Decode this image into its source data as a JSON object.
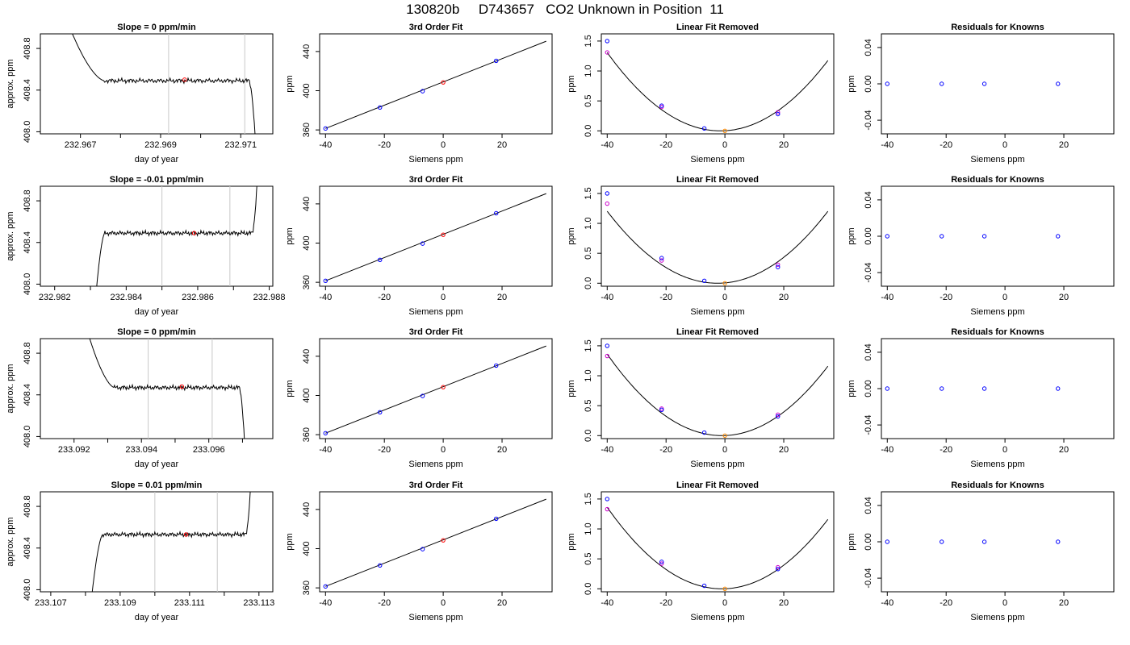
{
  "main_title": "130820b     D743657   CO2 Unknown in Position  11",
  "colors": {
    "axis": "#000000",
    "line": "#000000",
    "guide": "#c8c8c8",
    "known": "#0000ff",
    "unknown": "#ff0000",
    "alt_known": "#cc00cc",
    "fitted_unknown": "#ff8c00"
  },
  "common": {
    "fit_title": "3rd Order Fit",
    "removed_title": "Linear Fit Removed",
    "resid_title": "Residuals for Knowns",
    "x_label_siemens": "Siemens ppm",
    "y_label_ppm": "ppm",
    "x_label_day": "day of year",
    "y_label_approx": "approx. ppm"
  },
  "chart_data": [
    {
      "row": 1,
      "timeseries": {
        "type": "line",
        "title": "Slope =  0  ppm/min",
        "xlabel": "day of year",
        "ylabel": "approx. ppm",
        "xlim": [
          232.966,
          232.9718
        ],
        "ylim": [
          407.98,
          408.94
        ],
        "xticks": [
          232.967,
          232.969,
          232.971
        ],
        "xtick_labels": [
          "232.967",
          "232.969",
          "232.971"
        ],
        "xminor": [
          232.968,
          232.97
        ],
        "yticks": [
          408.0,
          408.4,
          408.8
        ],
        "ytick_labels": [
          "408.0",
          "408.4",
          "408.8"
        ],
        "vlines": [
          232.9692,
          232.9711
        ],
        "trace": {
          "start": 232.9665,
          "end": 232.9714,
          "settle": 232.9676,
          "level": 408.49,
          "enter": "high",
          "exit": "low"
        },
        "marker": {
          "x": 232.9696,
          "y": 408.5
        }
      },
      "fit": {
        "type": "line",
        "xlim": [
          -42,
          37
        ],
        "ylim": [
          356,
          458
        ],
        "xticks": [
          -40,
          -20,
          0,
          20
        ],
        "yticks": [
          360,
          400,
          440
        ],
        "knowns": [
          [
            -40,
            361.5
          ],
          [
            -21.5,
            382.9
          ],
          [
            -7,
            399.5
          ],
          [
            18,
            430.5
          ]
        ],
        "unknown": [
          0,
          408.5
        ],
        "line": [
          [
            -40,
            361.5
          ],
          [
            35,
            450.5
          ]
        ]
      },
      "removed": {
        "type": "scatter",
        "xlim": [
          -42,
          37
        ],
        "ylim": [
          -0.05,
          1.62
        ],
        "xticks": [
          -40,
          -20,
          0,
          20
        ],
        "yticks": [
          0,
          0.5,
          1,
          1.5
        ],
        "ytick_labels": [
          "0.0",
          "0.5",
          "1.0",
          "1.5"
        ],
        "knowns": [
          [
            -40,
            1.5
          ],
          [
            -21.5,
            0.42
          ],
          [
            -7,
            0.04
          ],
          [
            18,
            0.28
          ]
        ],
        "alt": [
          [
            -40,
            1.31
          ],
          [
            -21.5,
            0.4
          ],
          [
            18,
            0.31
          ]
        ],
        "unknown": [
          0,
          0
        ],
        "curve": {
          "vertex_x": -1.5,
          "a": 0.000882
        }
      },
      "resid": {
        "type": "scatter",
        "xlim": [
          -42,
          37
        ],
        "ylim": [
          -0.055,
          0.055
        ],
        "xticks": [
          -40,
          -20,
          0,
          20
        ],
        "yticks": [
          -0.04,
          0,
          0.04
        ],
        "ytick_labels": [
          "-0.04",
          "0.00",
          "0.04"
        ],
        "knowns": [
          [
            -40,
            0
          ],
          [
            -21.5,
            0
          ],
          [
            -7,
            0
          ],
          [
            18,
            0
          ]
        ]
      }
    },
    {
      "row": 2,
      "timeseries": {
        "type": "line",
        "title": "Slope =  -0.01  ppm/min",
        "xlabel": "day of year",
        "ylabel": "approx. ppm",
        "xlim": [
          232.9816,
          232.9881
        ],
        "ylim": [
          407.98,
          408.94
        ],
        "xticks": [
          232.982,
          232.984,
          232.986,
          232.988
        ],
        "xtick_labels": [
          "232.982",
          "232.984",
          "232.986",
          "232.988"
        ],
        "xminor": [
          232.983,
          232.985,
          232.987
        ],
        "yticks": [
          408.0,
          408.4,
          408.8
        ],
        "ytick_labels": [
          "408.0",
          "408.4",
          "408.8"
        ],
        "vlines": [
          232.985,
          232.9869
        ],
        "trace": {
          "start": 232.9831,
          "end": 232.9877,
          "settle": 232.9834,
          "level": 408.49,
          "enter": "low",
          "exit": "high"
        },
        "marker": {
          "x": 232.9859,
          "y": 408.49
        }
      },
      "fit": {
        "type": "line",
        "xlim": [
          -42,
          37
        ],
        "ylim": [
          356,
          458
        ],
        "xticks": [
          -40,
          -20,
          0,
          20
        ],
        "yticks": [
          360,
          400,
          440
        ],
        "knowns": [
          [
            -40,
            361.5
          ],
          [
            -21.5,
            382.9
          ],
          [
            -7,
            399.5
          ],
          [
            18,
            430.5
          ]
        ],
        "unknown": [
          0,
          408.5
        ],
        "line": [
          [
            -40,
            361.5
          ],
          [
            35,
            450.5
          ]
        ]
      },
      "removed": {
        "type": "scatter",
        "xlim": [
          -42,
          37
        ],
        "ylim": [
          -0.05,
          1.62
        ],
        "xticks": [
          -40,
          -20,
          0,
          20
        ],
        "yticks": [
          0,
          0.5,
          1,
          1.5
        ],
        "ytick_labels": [
          "0.0",
          "0.5",
          "1.0",
          "1.5"
        ],
        "knowns": [
          [
            -40,
            1.5
          ],
          [
            -21.5,
            0.42
          ],
          [
            -7,
            0.04
          ],
          [
            18,
            0.27
          ]
        ],
        "alt": [
          [
            -40,
            1.33
          ],
          [
            -21.5,
            0.38
          ],
          [
            18,
            0.31
          ]
        ],
        "unknown": [
          0,
          0
        ],
        "curve": {
          "vertex_x": -2.5,
          "a": 0.000855
        }
      },
      "resid": {
        "type": "scatter",
        "xlim": [
          -42,
          37
        ],
        "ylim": [
          -0.055,
          0.055
        ],
        "xticks": [
          -40,
          -20,
          0,
          20
        ],
        "yticks": [
          -0.04,
          0,
          0.04
        ],
        "ytick_labels": [
          "-0.04",
          "0.00",
          "0.04"
        ],
        "knowns": [
          [
            -40,
            0
          ],
          [
            -21.5,
            0
          ],
          [
            -7,
            0
          ],
          [
            18,
            0
          ]
        ]
      }
    },
    {
      "row": 3,
      "timeseries": {
        "type": "line",
        "title": "Slope =  0  ppm/min",
        "xlabel": "day of year",
        "ylabel": "approx. ppm",
        "xlim": [
          233.091,
          233.0979
        ],
        "ylim": [
          407.98,
          408.94
        ],
        "xticks": [
          233.092,
          233.094,
          233.096
        ],
        "xtick_labels": [
          "233.092",
          "233.094",
          "233.096"
        ],
        "xminor": [
          233.093,
          233.095,
          233.097
        ],
        "yticks": [
          408.0,
          408.4,
          408.8
        ],
        "ytick_labels": [
          "408.0",
          "408.4",
          "408.8"
        ],
        "vlines": [
          233.0942,
          233.0961
        ],
        "trace": {
          "start": 233.0922,
          "end": 233.0971,
          "settle": 233.0932,
          "level": 408.47,
          "enter": "high",
          "exit": "low"
        },
        "marker": {
          "x": 233.0952,
          "y": 408.48
        }
      },
      "fit": {
        "type": "line",
        "xlim": [
          -42,
          37
        ],
        "ylim": [
          356,
          458
        ],
        "xticks": [
          -40,
          -20,
          0,
          20
        ],
        "yticks": [
          360,
          400,
          440
        ],
        "knowns": [
          [
            -40,
            361.5
          ],
          [
            -21.5,
            382.9
          ],
          [
            -7,
            399.5
          ],
          [
            18,
            430.5
          ]
        ],
        "unknown": [
          0,
          408.5
        ],
        "line": [
          [
            -40,
            361.5
          ],
          [
            35,
            450.5
          ]
        ]
      },
      "removed": {
        "type": "scatter",
        "xlim": [
          -42,
          37
        ],
        "ylim": [
          -0.05,
          1.62
        ],
        "xticks": [
          -40,
          -20,
          0,
          20
        ],
        "yticks": [
          0,
          0.5,
          1,
          1.5
        ],
        "ytick_labels": [
          "0.0",
          "0.5",
          "1.0",
          "1.5"
        ],
        "knowns": [
          [
            -40,
            1.5
          ],
          [
            -21.5,
            0.43
          ],
          [
            -7,
            0.05
          ],
          [
            18,
            0.32
          ]
        ],
        "alt": [
          [
            -40,
            1.33
          ],
          [
            -21.5,
            0.45
          ],
          [
            18,
            0.35
          ]
        ],
        "unknown": [
          0,
          0
        ],
        "curve": {
          "vertex_x": -1.0,
          "a": 0.000895
        }
      },
      "resid": {
        "type": "scatter",
        "xlim": [
          -42,
          37
        ],
        "ylim": [
          -0.055,
          0.055
        ],
        "xticks": [
          -40,
          -20,
          0,
          20
        ],
        "yticks": [
          -0.04,
          0,
          0.04
        ],
        "ytick_labels": [
          "-0.04",
          "0.00",
          "0.04"
        ],
        "knowns": [
          [
            -40,
            0
          ],
          [
            -21.5,
            0
          ],
          [
            -7,
            0
          ],
          [
            18,
            0
          ]
        ]
      }
    },
    {
      "row": 4,
      "timeseries": {
        "type": "line",
        "title": "Slope =  0.01  ppm/min",
        "xlabel": "day of year",
        "ylabel": "approx. ppm",
        "xlim": [
          233.1067,
          233.1134
        ],
        "ylim": [
          407.98,
          408.94
        ],
        "xticks": [
          233.107,
          233.109,
          233.111,
          233.113
        ],
        "xtick_labels": [
          "233.107",
          "233.109",
          "233.111",
          "233.113"
        ],
        "xminor": [
          233.108,
          233.11,
          233.112
        ],
        "yticks": [
          408.0,
          408.4,
          408.8
        ],
        "ytick_labels": [
          "408.0",
          "408.4",
          "408.8"
        ],
        "vlines": [
          233.11,
          233.1118
        ],
        "trace": {
          "start": 233.1081,
          "end": 233.1128,
          "settle": 233.1085,
          "level": 408.53,
          "enter": "low",
          "exit": "high"
        },
        "marker": {
          "x": 233.1109,
          "y": 408.53
        }
      },
      "fit": {
        "type": "line",
        "xlim": [
          -42,
          37
        ],
        "ylim": [
          356,
          458
        ],
        "xticks": [
          -40,
          -20,
          0,
          20
        ],
        "yticks": [
          360,
          400,
          440
        ],
        "knowns": [
          [
            -40,
            361.5
          ],
          [
            -21.5,
            382.9
          ],
          [
            -7,
            399.5
          ],
          [
            18,
            430.5
          ]
        ],
        "unknown": [
          0,
          408.5
        ],
        "line": [
          [
            -40,
            361.5
          ],
          [
            35,
            450.5
          ]
        ]
      },
      "removed": {
        "type": "scatter",
        "xlim": [
          -42,
          37
        ],
        "ylim": [
          -0.05,
          1.62
        ],
        "xticks": [
          -40,
          -20,
          0,
          20
        ],
        "yticks": [
          0,
          0.5,
          1,
          1.5
        ],
        "ytick_labels": [
          "0.0",
          "0.5",
          "1.0",
          "1.5"
        ],
        "knowns": [
          [
            -40,
            1.5
          ],
          [
            -21.5,
            0.45
          ],
          [
            -7,
            0.05
          ],
          [
            18,
            0.33
          ]
        ],
        "alt": [
          [
            -40,
            1.33
          ],
          [
            -21.5,
            0.42
          ],
          [
            18,
            0.36
          ]
        ],
        "unknown": [
          0,
          0
        ],
        "curve": {
          "vertex_x": -1.0,
          "a": 0.000895
        }
      },
      "resid": {
        "type": "scatter",
        "xlim": [
          -42,
          37
        ],
        "ylim": [
          -0.055,
          0.055
        ],
        "xticks": [
          -40,
          -20,
          0,
          20
        ],
        "yticks": [
          -0.04,
          0,
          0.04
        ],
        "ytick_labels": [
          "-0.04",
          "0.00",
          "0.04"
        ],
        "knowns": [
          [
            -40,
            0
          ],
          [
            -21.5,
            0
          ],
          [
            -7,
            0
          ],
          [
            18,
            0
          ]
        ]
      }
    }
  ]
}
